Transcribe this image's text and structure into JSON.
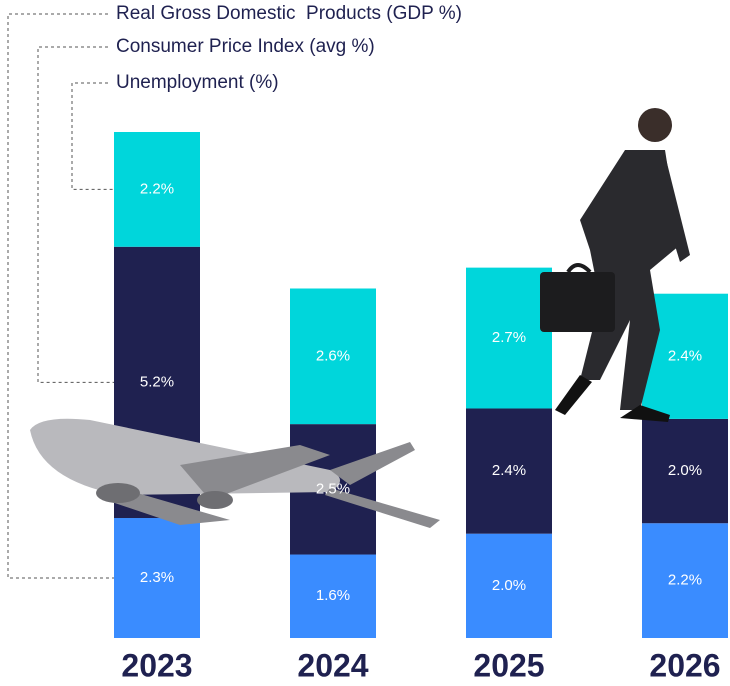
{
  "chart_data": {
    "type": "bar",
    "stacked": true,
    "categories": [
      "2023",
      "2024",
      "2025",
      "2026"
    ],
    "series": [
      {
        "name": "Real Gross Domestic  Products (GDP %)",
        "color": "#3a8cff",
        "values": [
          2.3,
          1.6,
          2.0,
          2.2
        ],
        "value_labels": [
          "2.3%",
          "1.6%",
          "2.0%",
          "2.2%"
        ]
      },
      {
        "name": "Consumer Price Index (avg %)",
        "color": "#1f2150",
        "values": [
          5.2,
          2.5,
          2.4,
          2.0
        ],
        "value_labels": [
          "5.2%",
          "2.5%",
          "2.4%",
          "2.0%"
        ]
      },
      {
        "name": "Unemployment (%)",
        "color": "#00d6db",
        "values": [
          2.2,
          2.6,
          2.7,
          2.4
        ],
        "value_labels": [
          "2.2%",
          "2.6%",
          "2.7%",
          "2.4%"
        ]
      }
    ]
  }
}
